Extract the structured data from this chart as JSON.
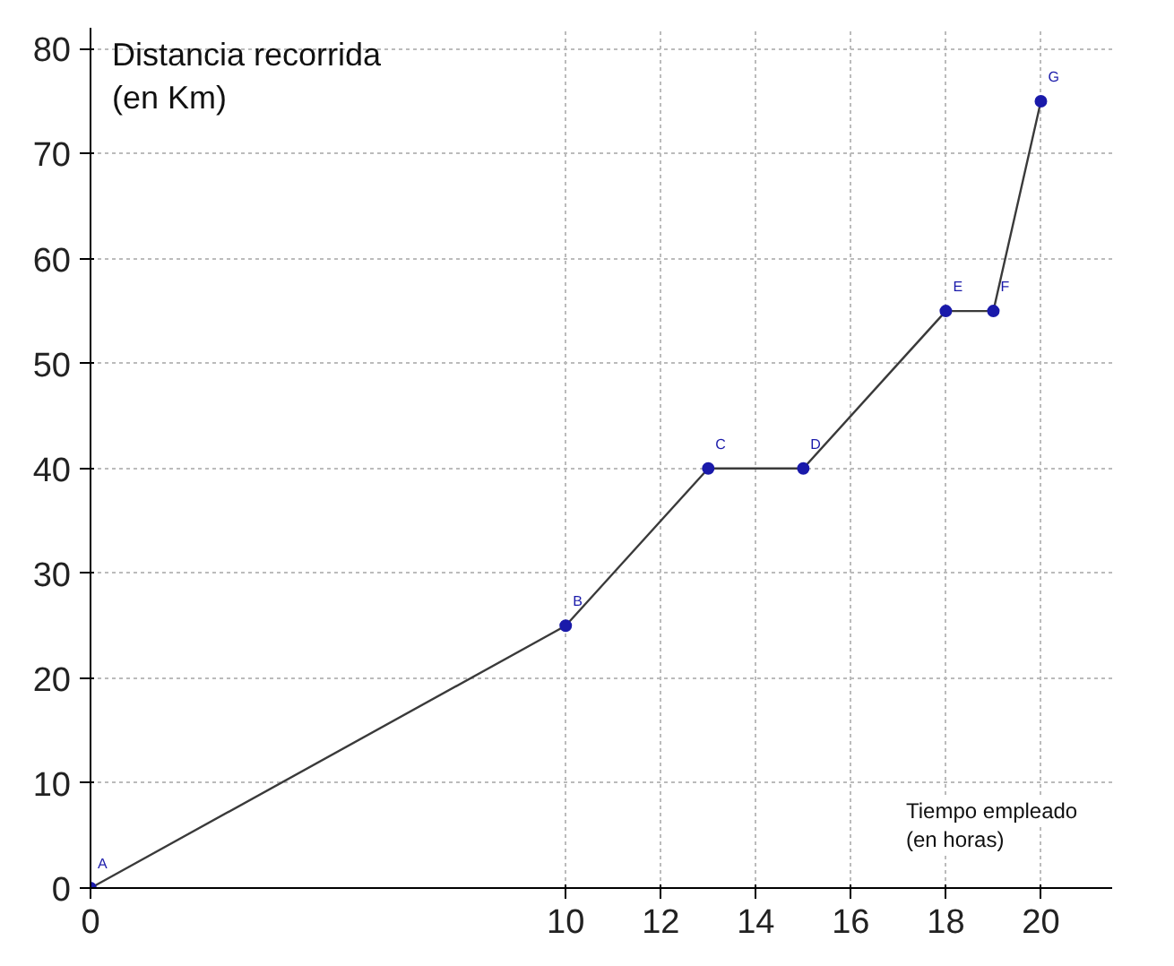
{
  "chart_data": {
    "type": "line",
    "xlabel": "Tiempo empleado\n(en horas)",
    "ylabel": "Distancia recorrida\n(en Km)",
    "x": [
      0,
      10,
      13,
      15,
      18,
      19,
      20
    ],
    "series": [
      {
        "color": "#3a3a3a",
        "colors": [
          "#1a1aaa",
          "#1a1aaa",
          "#1a1aaa",
          "#1a1aaa",
          "#1a1aaa",
          "#1a1aaa",
          "#1a1aaa"
        ],
        "values": [
          0,
          25,
          40,
          40,
          55,
          55,
          75
        ]
      }
    ],
    "marker": "circle",
    "grid": true,
    "xlim": [
      0,
      21.5
    ],
    "ylim": [
      0,
      82
    ],
    "xticks": [
      0,
      10,
      12,
      14,
      16,
      18,
      20
    ],
    "yticks": [
      0,
      10,
      20,
      30,
      40,
      50,
      60,
      70,
      80
    ],
    "annotations": [
      {
        "text": "A",
        "x": 0,
        "y": 0
      },
      {
        "text": "B",
        "x": 10,
        "y": 25
      },
      {
        "text": "C",
        "x": 13,
        "y": 40
      },
      {
        "text": "D",
        "x": 15,
        "y": 40
      },
      {
        "text": "E",
        "x": 18,
        "y": 55
      },
      {
        "text": "F",
        "x": 19,
        "y": 55
      },
      {
        "text": "G",
        "x": 20,
        "y": 75
      }
    ]
  }
}
